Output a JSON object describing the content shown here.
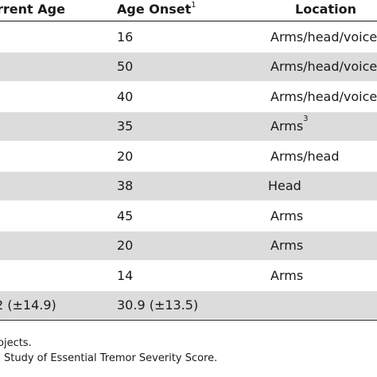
{
  "headers": {
    "current_age": "rrent Age",
    "age_onset": "Age Onset",
    "age_onset_sup": "1",
    "location": "Location"
  },
  "rows": [
    {
      "current": "",
      "onset": "16",
      "location": "Arms/head/voice",
      "location_sup": ""
    },
    {
      "current": "",
      "onset": "50",
      "location": "Arms/head/voice",
      "location_sup": ""
    },
    {
      "current": "",
      "onset": "40",
      "location": "Arms/head/voice",
      "location_sup": ""
    },
    {
      "current": "",
      "onset": "35",
      "location": "Arms",
      "location_sup": "3"
    },
    {
      "current": "",
      "onset": "20",
      "location": "Arms/head",
      "location_sup": ""
    },
    {
      "current": "",
      "onset": "38",
      "location": "Head",
      "location_sup": ""
    },
    {
      "current": "",
      "onset": "45",
      "location": "Arms",
      "location_sup": ""
    },
    {
      "current": "",
      "onset": "20",
      "location": "Arms",
      "location_sup": ""
    },
    {
      "current": "",
      "onset": "14",
      "location": "Arms",
      "location_sup": ""
    }
  ],
  "summary": {
    "current": "2 (±14.9)",
    "onset": "30.9 (±13.5)",
    "location": ""
  },
  "footnotes": [
    "ojects.",
    "Study of Essential Tremor Severity Score."
  ]
}
